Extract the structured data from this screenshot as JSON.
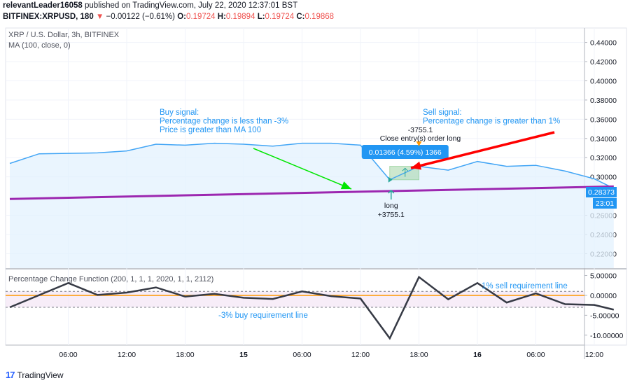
{
  "header": {
    "author": "relevantLeader16058",
    "published_text": "published on TradingView.com, July 22, 2020 12:37:01 BST",
    "symbol": "BITFINEX:XRPUSD, 180",
    "change": "−0.00122 (−0.61%)",
    "o_label": "O:",
    "o_value": "0.19724",
    "h_label": "H:",
    "h_value": "0.19894",
    "l_label": "L:",
    "l_value": "0.19724",
    "c_label": "C:",
    "c_value": "0.19868"
  },
  "main_pane": {
    "title": "XRP / U.S. Dollar, 3h, BITFINEX",
    "study": "MA (100, close, 0)",
    "price_badge": "0.28373",
    "time_badge": "23:01"
  },
  "indicator_pane": {
    "title": "Percentage Change Function (200, 1, 1, 1, 2020, 1, 1, 2112)"
  },
  "annotations": {
    "buy_signal": [
      "Buy signal:",
      "Percentage change is less than -3%",
      "Price is greater than MA 100"
    ],
    "sell_signal": [
      "Sell signal:",
      "Percentage change is greater than 1%"
    ],
    "close_label_1": "-3755.1",
    "close_label_2": "Close entry(s) order long",
    "trade_tooltip": "0.01366 (4.59%) 1366",
    "long_label_1": "long",
    "long_label_2": "+3755.1",
    "sell_line_label": "1% sell requirement line",
    "buy_line_label": "-3% buy requirement line"
  },
  "footer": {
    "brand": "TradingView"
  },
  "colors": {
    "price_line": "#42a5f5",
    "price_fill": "#e3f2fd",
    "ma_line": "#9c27b0",
    "indicator_line": "#363a45",
    "zero_line": "#ff9800",
    "band_fill": "#f3e5f5",
    "buy_arrow": "#00e600",
    "sell_arrow": "#ff0000",
    "annotation_text": "#2196f3",
    "badge_blue": "#2196f3"
  },
  "chart_data": [
    {
      "type": "area",
      "pane": "price",
      "x_tick_labels": [
        "06:00",
        "12:00",
        "18:00",
        "15",
        "06:00",
        "12:00",
        "18:00",
        "16",
        "06:00",
        "12:00"
      ],
      "y_tick_labels": [
        "0.44000",
        "0.42000",
        "0.40000",
        "0.38000",
        "0.36000",
        "0.34000",
        "0.32000",
        "0.30000",
        "0.26000",
        "0.24000",
        "0.22000"
      ],
      "ylim": [
        0.205,
        0.455
      ],
      "series": [
        {
          "x": [
            "2020-07-14 00:00",
            "2020-07-14 03:00",
            "2020-07-14 09:00",
            "2020-07-14 12:00",
            "2020-07-14 15:00",
            "2020-07-14 18:00",
            "2020-07-14 21:00",
            "2020-07-15 00:00",
            "2020-07-15 03:00",
            "2020-07-15 06:00",
            "2020-07-15 09:00",
            "2020-07-15 12:00",
            "2020-07-15 15:00",
            "2020-07-15 18:00",
            "2020-07-15 21:00",
            "2020-07-16 00:00",
            "2020-07-16 03:00",
            "2020-07-16 06:00",
            "2020-07-16 09:00",
            "2020-07-16 12:00",
            "2020-07-16 14:00"
          ],
          "values": [
            0.314,
            0.324,
            0.325,
            0.327,
            0.334,
            0.333,
            0.335,
            0.334,
            0.332,
            0.335,
            0.335,
            0.333,
            0.297,
            0.311,
            0.307,
            0.316,
            0.311,
            0.312,
            0.306,
            0.298,
            0.288
          ]
        },
        {
          "x": [
            "2020-07-14 00:00",
            "2020-07-16 14:00"
          ],
          "values": [
            0.277,
            0.29
          ]
        }
      ]
    },
    {
      "type": "line",
      "pane": "indicator",
      "y_tick_labels": [
        "5.00000",
        "0.00000",
        "-5.00000",
        "-10.00000"
      ],
      "ylim": [
        -12.5,
        6.5
      ],
      "reference_lines": [
        1,
        0,
        -3
      ],
      "series": [
        {
          "x": [
            "2020-07-14 00:00",
            "2020-07-14 06:00",
            "2020-07-14 09:00",
            "2020-07-14 12:00",
            "2020-07-14 15:00",
            "2020-07-14 18:00",
            "2020-07-14 21:00",
            "2020-07-15 00:00",
            "2020-07-15 03:00",
            "2020-07-15 06:00",
            "2020-07-15 09:00",
            "2020-07-15 12:00",
            "2020-07-15 15:00",
            "2020-07-15 18:00",
            "2020-07-15 21:00",
            "2020-07-16 00:00",
            "2020-07-16 03:00",
            "2020-07-16 06:00",
            "2020-07-16 09:00",
            "2020-07-16 12:00",
            "2020-07-16 14:00"
          ],
          "values": [
            -3.0,
            3.1,
            0.1,
            0.7,
            2.0,
            -0.3,
            0.4,
            -0.6,
            -0.9,
            1.0,
            -0.2,
            -0.8,
            -10.8,
            4.6,
            -1.0,
            3.1,
            -1.8,
            0.5,
            -2.2,
            -2.4,
            -3.6
          ]
        }
      ]
    }
  ]
}
